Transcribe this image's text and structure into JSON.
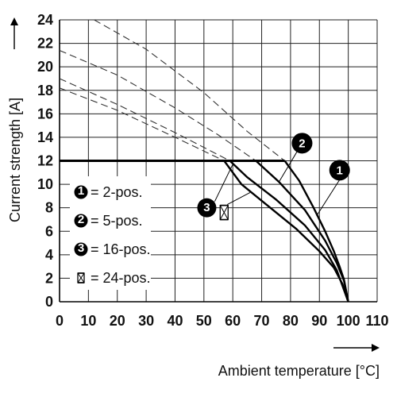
{
  "chart_data": {
    "type": "line",
    "xlabel": "Ambient temperature [°C]",
    "ylabel": "Current strength [A]",
    "xlim": [
      0,
      110
    ],
    "ylim": [
      0,
      24
    ],
    "x_ticks": [
      0,
      10,
      20,
      30,
      40,
      50,
      60,
      70,
      80,
      90,
      100,
      110
    ],
    "y_ticks": [
      0,
      2,
      4,
      6,
      8,
      10,
      12,
      14,
      16,
      18,
      20,
      22,
      24
    ],
    "grid": true,
    "legend_position": "left-middle",
    "legend": [
      {
        "marker": "1",
        "label": "= 2-pos."
      },
      {
        "marker": "2",
        "label": "= 5-pos."
      },
      {
        "marker": "3",
        "label": "= 16-pos."
      },
      {
        "marker": "crossed-box",
        "label": "= 24-pos."
      }
    ],
    "plateau": {
      "value": 12,
      "x": [
        0,
        78
      ]
    },
    "series": [
      {
        "marker": "1",
        "solid": {
          "x": [
            78,
            83,
            88,
            92,
            95,
            97,
            98.5,
            100
          ],
          "y": [
            12,
            10.3,
            8.0,
            6.0,
            4.3,
            3.0,
            1.9,
            0
          ]
        },
        "dashed": {
          "x": [
            12,
            30,
            50,
            65,
            78
          ],
          "y": [
            24,
            21.5,
            17.8,
            14.5,
            12
          ]
        }
      },
      {
        "marker": "2",
        "solid": {
          "x": [
            68,
            76,
            85,
            92,
            96,
            98.5,
            100
          ],
          "y": [
            12,
            10.2,
            7.8,
            5.2,
            3.3,
            1.8,
            0
          ]
        },
        "dashed": {
          "x": [
            0,
            20,
            40,
            55,
            68
          ],
          "y": [
            21.4,
            19.3,
            16.5,
            14.2,
            12
          ]
        }
      },
      {
        "marker": "3",
        "solid": {
          "x": [
            59,
            65,
            75,
            85,
            92,
            96,
            100
          ],
          "y": [
            12,
            10.6,
            8.7,
            6.5,
            4.4,
            2.7,
            0
          ]
        },
        "dashed": {
          "x": [
            0,
            20,
            40,
            59
          ],
          "y": [
            19.0,
            16.8,
            14.4,
            12
          ]
        }
      },
      {
        "marker": "crossed-box",
        "solid": {
          "x": [
            57,
            63,
            72,
            82,
            90,
            95,
            98,
            100
          ],
          "y": [
            12,
            10.0,
            8.2,
            6.2,
            4.3,
            2.9,
            1.5,
            0
          ]
        },
        "dashed": {
          "x": [
            0,
            20,
            40,
            57
          ],
          "y": [
            18.2,
            16.3,
            14.0,
            12
          ]
        }
      }
    ],
    "curve_markers": [
      {
        "marker": "1",
        "x": 97,
        "y": 11.2
      },
      {
        "marker": "2",
        "x": 84,
        "y": 13.5
      },
      {
        "marker": "3",
        "x": 51,
        "y": 8.0
      },
      {
        "marker": "crossed-box",
        "x": 57,
        "y": 7.6
      }
    ]
  }
}
